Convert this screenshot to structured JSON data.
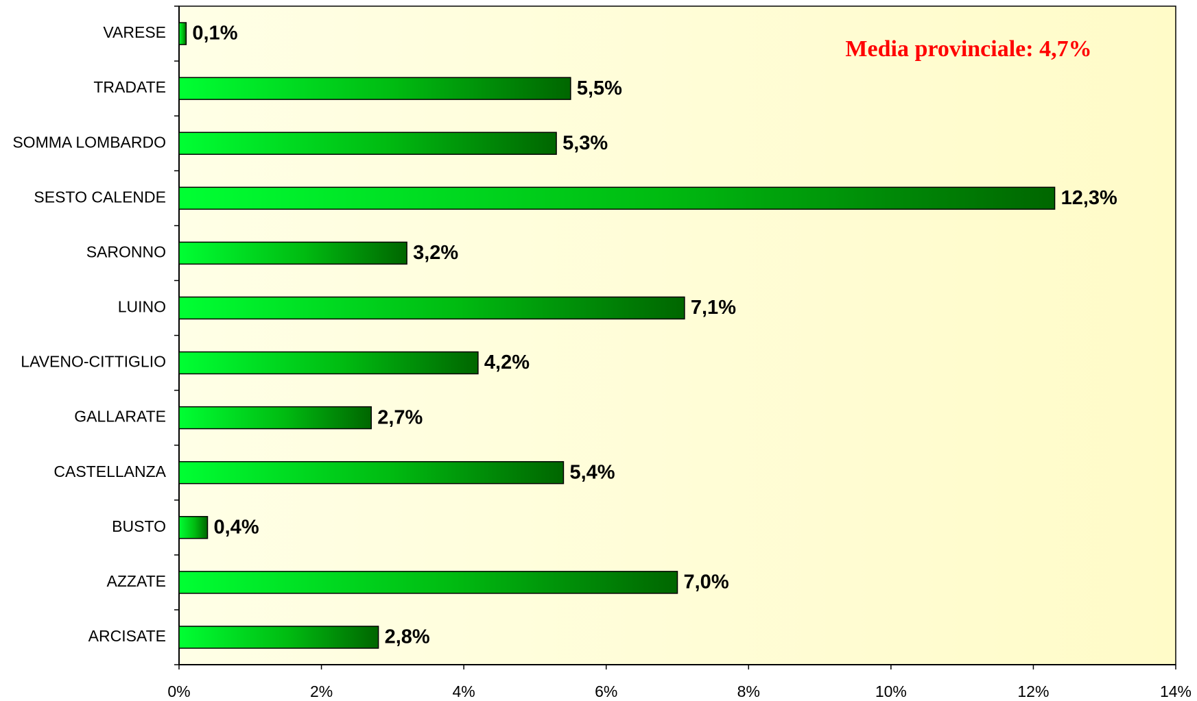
{
  "chart_data": {
    "type": "bar",
    "orientation": "horizontal",
    "annotation": "Media provinciale: 4,7%",
    "annotation_color": "#ff0000",
    "categories": [
      "VARESE",
      "TRADATE",
      "SOMMA LOMBARDO",
      "SESTO CALENDE",
      "SARONNO",
      "LUINO",
      "LAVENO-CITTIGLIO",
      "GALLARATE",
      "CASTELLANZA",
      "BUSTO",
      "AZZATE",
      "ARCISATE"
    ],
    "values": [
      0.1,
      5.5,
      5.3,
      12.3,
      3.2,
      7.1,
      4.2,
      2.7,
      5.4,
      0.4,
      7.0,
      2.8
    ],
    "value_labels": [
      "0,1%",
      "5,5%",
      "5,3%",
      "12,3%",
      "3,2%",
      "7,1%",
      "4,2%",
      "2,7%",
      "5,4%",
      "0,4%",
      "7,0%",
      "2,8%"
    ],
    "color": "#00cc00",
    "xlim": [
      0,
      14
    ],
    "xticks": [
      {
        "value": 0,
        "label": "0%"
      },
      {
        "value": 2,
        "label": "2%"
      },
      {
        "value": 4,
        "label": "4%"
      },
      {
        "value": 6,
        "label": "6%"
      },
      {
        "value": 8,
        "label": "8%"
      },
      {
        "value": 10,
        "label": "10%"
      },
      {
        "value": 12,
        "label": "12%"
      },
      {
        "value": 14,
        "label": "14%"
      }
    ],
    "grid": false
  }
}
